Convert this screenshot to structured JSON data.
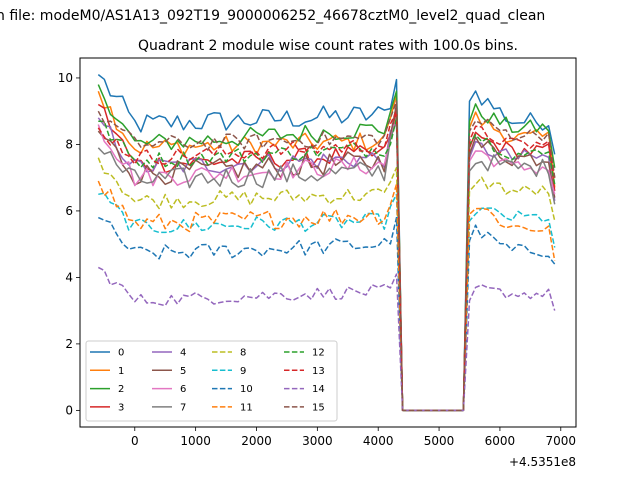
{
  "figure": {
    "suptitle": "n file: modeM0/AS1A13_092T19_9000006252_46678cztM0_level2_quad_clean",
    "title": "Quadrant 2 module wise count rates with 100.0s bins.",
    "offset_text": "+4.5351e8"
  },
  "chart_data": {
    "type": "line",
    "title": "Quadrant 2 module wise count rates with 100.0s bins.",
    "xlabel": "",
    "ylabel": "",
    "x_offset": 453510000,
    "x_start": -600,
    "x_step": 100,
    "gap": {
      "from_index": 50,
      "to_index": 60
    },
    "xlim": [
      -900,
      7250
    ],
    "ylim": [
      -0.5,
      10.6
    ],
    "xticks": [
      0,
      1000,
      2000,
      3000,
      4000,
      5000,
      6000,
      7000
    ],
    "xtick_labels": [
      "0",
      "1000",
      "2000",
      "3000",
      "4000",
      "5000",
      "6000",
      "7000"
    ],
    "yticks": [
      0,
      2,
      4,
      6,
      8,
      10
    ],
    "ytick_labels": [
      "0",
      "2",
      "4",
      "6",
      "8",
      "10"
    ],
    "grid": false,
    "legend": {
      "placement": "lower-left",
      "columns": 4
    },
    "series": [
      {
        "name": "0",
        "color": "#1f77b4",
        "dash": "solid",
        "start": 10.1,
        "level": 8.6,
        "mid_end": 8.9,
        "peak": 9.95,
        "after_start": 9.7,
        "after_mid": 8.7,
        "end": 7.7,
        "noise": 0.35
      },
      {
        "name": "1",
        "color": "#ff7f0e",
        "dash": "solid",
        "start": 9.6,
        "level": 7.9,
        "mid_end": 8.1,
        "peak": 9.5,
        "after_start": 8.9,
        "after_mid": 8.2,
        "end": 6.7,
        "noise": 0.3
      },
      {
        "name": "2",
        "color": "#2ca02c",
        "dash": "solid",
        "start": 9.8,
        "level": 8.0,
        "mid_end": 8.5,
        "peak": 9.6,
        "after_start": 9.1,
        "after_mid": 8.5,
        "end": 7.3,
        "noise": 0.3
      },
      {
        "name": "3",
        "color": "#d62728",
        "dash": "solid",
        "start": 9.2,
        "level": 7.4,
        "mid_end": 7.7,
        "peak": 9.0,
        "after_start": 8.3,
        "after_mid": 7.8,
        "end": 6.6,
        "noise": 0.3
      },
      {
        "name": "4",
        "color": "#9467bd",
        "dash": "solid",
        "start": 8.8,
        "level": 7.3,
        "mid_end": 7.6,
        "peak": 8.7,
        "after_start": 8.0,
        "after_mid": 7.6,
        "end": 6.3,
        "noise": 0.3
      },
      {
        "name": "5",
        "color": "#8c564b",
        "dash": "solid",
        "start": 8.4,
        "level": 7.1,
        "mid_end": 7.5,
        "peak": 9.2,
        "after_start": 8.1,
        "after_mid": 7.6,
        "end": 6.4,
        "noise": 0.35
      },
      {
        "name": "6",
        "color": "#e377c2",
        "dash": "solid",
        "start": 8.6,
        "level": 7.0,
        "mid_end": 7.4,
        "peak": 8.8,
        "after_start": 7.9,
        "after_mid": 7.3,
        "end": 6.5,
        "noise": 0.3
      },
      {
        "name": "7",
        "color": "#7f7f7f",
        "dash": "solid",
        "start": 7.9,
        "level": 6.9,
        "mid_end": 7.2,
        "peak": 8.7,
        "after_start": 7.6,
        "after_mid": 7.3,
        "end": 6.2,
        "noise": 0.35
      },
      {
        "name": "8",
        "color": "#bcbd22",
        "dash": "dashed",
        "start": 7.6,
        "level": 6.3,
        "mid_end": 6.5,
        "peak": 7.3,
        "after_start": 7.0,
        "after_mid": 6.6,
        "end": 5.7,
        "noise": 0.25
      },
      {
        "name": "9",
        "color": "#17becf",
        "dash": "dashed",
        "start": 6.5,
        "level": 5.5,
        "mid_end": 5.7,
        "peak": 6.5,
        "after_start": 6.1,
        "after_mid": 5.8,
        "end": 4.9,
        "noise": 0.25
      },
      {
        "name": "10",
        "color": "#1f77b4",
        "dash": "dashed",
        "start": 5.8,
        "level": 4.7,
        "mid_end": 5.0,
        "peak": 5.8,
        "after_start": 5.5,
        "after_mid": 4.8,
        "end": 4.4,
        "noise": 0.25
      },
      {
        "name": "11",
        "color": "#ff7f0e",
        "dash": "dashed",
        "start": 6.9,
        "level": 5.6,
        "mid_end": 5.9,
        "peak": 6.8,
        "after_start": 6.3,
        "after_mid": 5.5,
        "end": 4.5,
        "noise": 0.3
      },
      {
        "name": "12",
        "color": "#2ca02c",
        "dash": "dashed",
        "start": 8.7,
        "level": 7.5,
        "mid_end": 7.9,
        "peak": 8.8,
        "after_start": 8.4,
        "after_mid": 7.7,
        "end": 6.8,
        "noise": 0.25
      },
      {
        "name": "13",
        "color": "#d62728",
        "dash": "dashed",
        "start": 8.5,
        "level": 7.6,
        "mid_end": 8.0,
        "peak": 9.0,
        "after_start": 8.5,
        "after_mid": 8.0,
        "end": 7.0,
        "noise": 0.25
      },
      {
        "name": "14",
        "color": "#9467bd",
        "dash": "dashed",
        "start": 4.3,
        "level": 3.3,
        "mid_end": 3.6,
        "peak": 4.1,
        "after_start": 3.7,
        "after_mid": 3.5,
        "end": 3.0,
        "noise": 0.2
      },
      {
        "name": "15",
        "color": "#8c564b",
        "dash": "dashed",
        "start": 9.0,
        "level": 8.0,
        "mid_end": 8.2,
        "peak": 9.3,
        "after_start": 8.8,
        "after_mid": 8.3,
        "end": 7.0,
        "noise": 0.25
      }
    ]
  }
}
